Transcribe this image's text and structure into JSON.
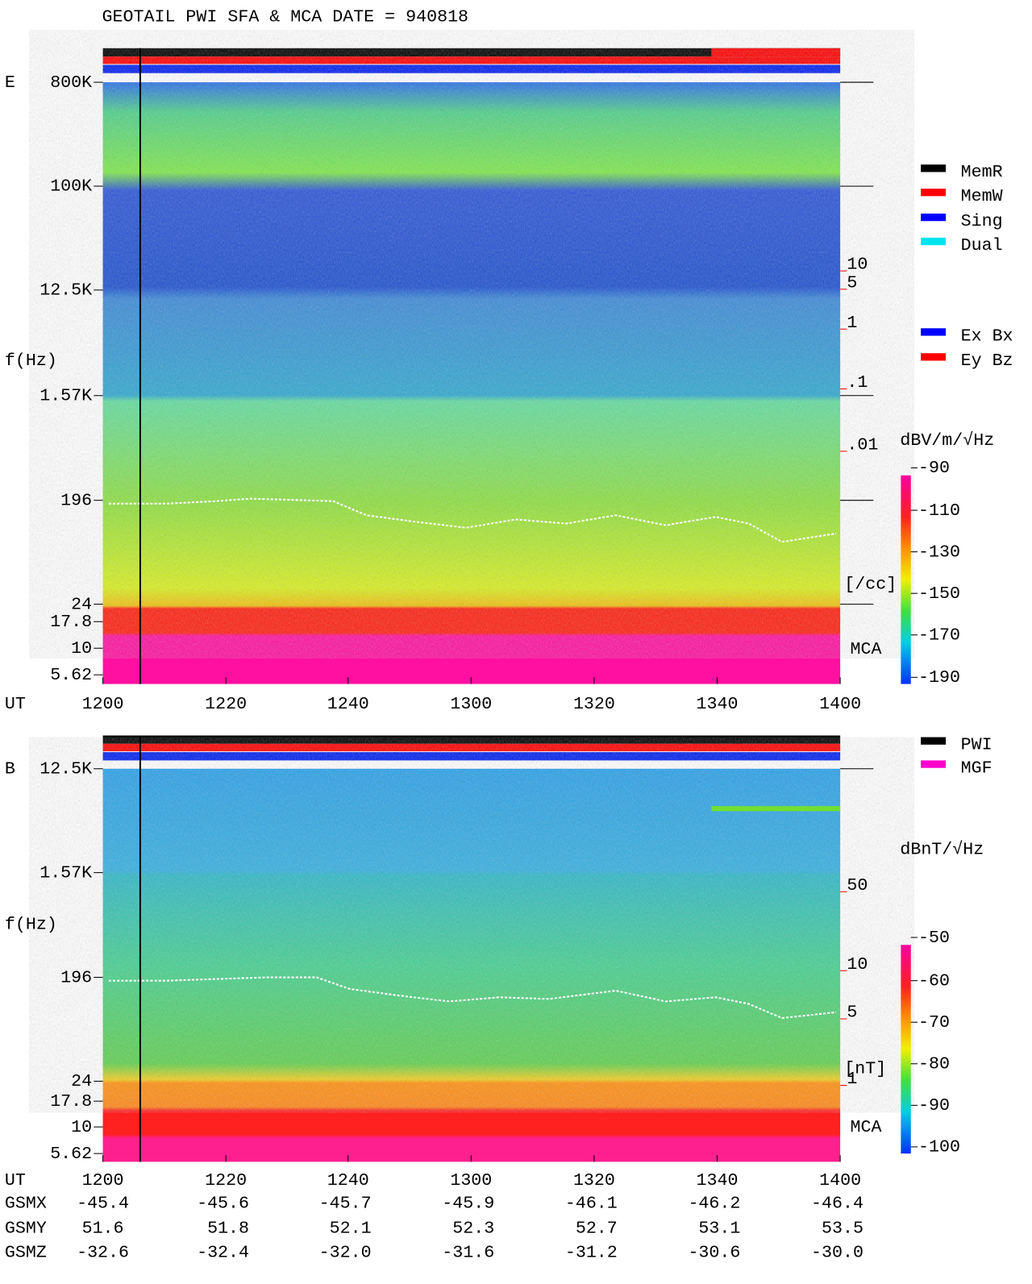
{
  "title": "GEOTAIL   PWI SFA & MCA    DATE = 940818",
  "panels": [
    {
      "label": "E",
      "y_label": "f(Hz)",
      "freq_ticks": [
        "800K",
        "100K",
        "12.5K",
        "1.57K",
        "196",
        "24",
        "17.8",
        "10",
        "5.62"
      ],
      "x_label": "UT",
      "x_ticks": [
        "1200",
        "1220",
        "1240",
        "1300",
        "1320",
        "1340",
        "1400"
      ],
      "right_scale": [
        "10",
        "5",
        "1",
        ".1",
        ".01"
      ],
      "right_unit": "[/cc]",
      "mca": "MCA",
      "colorbar": {
        "label": "dBV/m/√Hz",
        "ticks": [
          "-90",
          "-110",
          "-130",
          "-150",
          "-170",
          "-190"
        ]
      }
    },
    {
      "label": "B",
      "y_label": "f(Hz)",
      "freq_ticks": [
        "12.5K",
        "1.57K",
        "196",
        "24",
        "17.8",
        "10",
        "5.62"
      ],
      "x_label": "UT",
      "x_ticks": [
        "1200",
        "1220",
        "1240",
        "1300",
        "1320",
        "1340",
        "1400"
      ],
      "right_scale": [
        "50",
        "10",
        "5",
        "1"
      ],
      "right_unit": "[nT]",
      "mca": "MCA",
      "colorbar": {
        "label": "dBnT/√Hz",
        "ticks": [
          "-50",
          "-60",
          "-70",
          "-80",
          "-90",
          "-100"
        ]
      }
    }
  ],
  "legends": {
    "mode": [
      {
        "name": "MemR",
        "color": "#000000"
      },
      {
        "name": "MemW",
        "color": "#ff0000"
      },
      {
        "name": "Sing",
        "color": "#0000ff"
      },
      {
        "name": "Dual",
        "color": "#00e5ee"
      }
    ],
    "axes": [
      {
        "name": "Ex Bx",
        "color": "#0000ff"
      },
      {
        "name": "Ey Bz",
        "color": "#ff0000"
      }
    ],
    "source": [
      {
        "name": "PWI",
        "color": "#000000"
      },
      {
        "name": "MGF",
        "color": "#ff00cc"
      }
    ]
  },
  "ephemeris": {
    "rows": [
      {
        "name": "GSMX",
        "values": [
          "-45.4",
          "-45.6",
          "-45.7",
          "-45.9",
          "-46.1",
          "-46.2",
          "-46.4"
        ]
      },
      {
        "name": "GSMY",
        "values": [
          "51.6",
          "51.8",
          "52.1",
          "52.3",
          "52.7",
          "53.1",
          "53.5"
        ]
      },
      {
        "name": "GSMZ",
        "values": [
          "-32.6",
          "-32.4",
          "-32.0",
          "-31.6",
          "-31.2",
          "-30.6",
          "-30.0"
        ]
      }
    ]
  }
}
